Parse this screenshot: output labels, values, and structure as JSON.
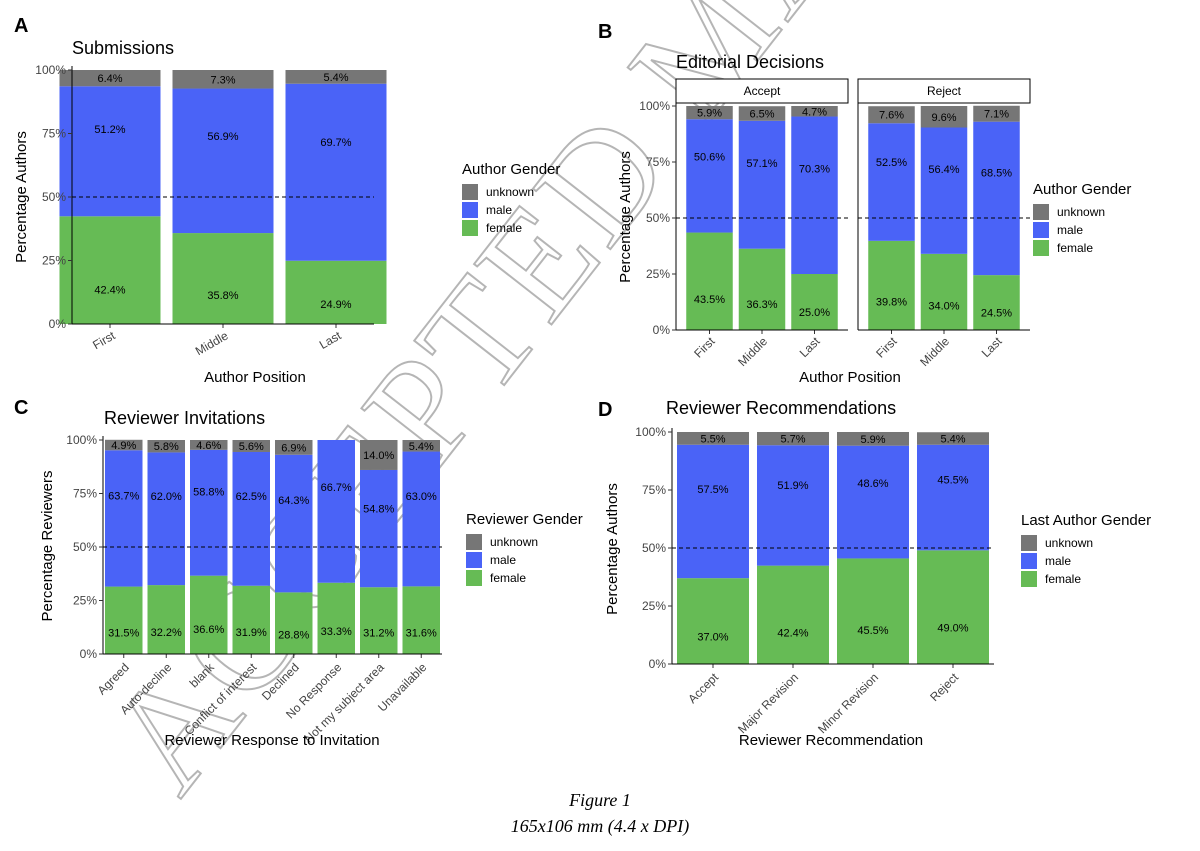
{
  "colors": {
    "unknown": "#767676",
    "male": "#4a63f7",
    "female": "#66bb55"
  },
  "caption": {
    "line1": "Figure 1",
    "line2": "165x106 mm (4.4 x  DPI)"
  },
  "watermark": "ACCEPTED MANUSCRIPT",
  "chart_data": [
    {
      "panel": "A",
      "type": "bar",
      "stacked": true,
      "title": "Submissions",
      "xlabel": "Author Position",
      "ylabel": "Percentage Authors",
      "yticks": [
        "0%",
        "25%",
        "50%",
        "75%",
        "100%"
      ],
      "ylim": [
        0,
        100
      ],
      "reference_line": 50,
      "legend_title": "Author Gender",
      "legend_items": [
        "unknown",
        "male",
        "female"
      ],
      "categories": [
        "First",
        "Middle",
        "Last"
      ],
      "series": [
        {
          "name": "female",
          "values": [
            42.4,
            35.8,
            24.9
          ],
          "labels": [
            "42.4%",
            "35.8%",
            "24.9%"
          ]
        },
        {
          "name": "male",
          "values": [
            51.2,
            56.9,
            69.7
          ],
          "labels": [
            "51.2%",
            "56.9%",
            "69.7%"
          ]
        },
        {
          "name": "unknown",
          "values": [
            6.4,
            7.3,
            5.4
          ],
          "labels": [
            "6.4%",
            "7.3%",
            "5.4%"
          ]
        }
      ]
    },
    {
      "panel": "B",
      "type": "bar",
      "stacked": true,
      "title": "Editorial Decisions",
      "xlabel": "Author Position",
      "ylabel": "Percentage Authors",
      "yticks": [
        "0%",
        "25%",
        "50%",
        "75%",
        "100%"
      ],
      "ylim": [
        0,
        100
      ],
      "reference_line": 50,
      "legend_title": "Author Gender",
      "legend_items": [
        "unknown",
        "male",
        "female"
      ],
      "facets": [
        {
          "label": "Accept",
          "categories": [
            "First",
            "Middle",
            "Last"
          ],
          "series": [
            {
              "name": "female",
              "values": [
                43.5,
                36.3,
                25.0
              ],
              "labels": [
                "43.5%",
                "36.3%",
                "25.0%"
              ]
            },
            {
              "name": "male",
              "values": [
                50.6,
                57.1,
                70.3
              ],
              "labels": [
                "50.6%",
                "57.1%",
                "70.3%"
              ]
            },
            {
              "name": "unknown",
              "values": [
                5.9,
                6.5,
                4.7
              ],
              "labels": [
                "5.9%",
                "6.5%",
                "4.7%"
              ]
            }
          ]
        },
        {
          "label": "Reject",
          "categories": [
            "First",
            "Middle",
            "Last"
          ],
          "series": [
            {
              "name": "female",
              "values": [
                39.8,
                34.0,
                24.5
              ],
              "labels": [
                "39.8%",
                "34.0%",
                "24.5%"
              ]
            },
            {
              "name": "male",
              "values": [
                52.5,
                56.4,
                68.5
              ],
              "labels": [
                "52.5%",
                "56.4%",
                "68.5%"
              ]
            },
            {
              "name": "unknown",
              "values": [
                7.6,
                9.6,
                7.1
              ],
              "labels": [
                "7.6%",
                "9.6%",
                "7.1%"
              ]
            }
          ]
        }
      ]
    },
    {
      "panel": "C",
      "type": "bar",
      "stacked": true,
      "title": "Reviewer Invitations",
      "xlabel": "Reviewer Response to Invitation",
      "ylabel": "Percentage Reviewers",
      "yticks": [
        "0%",
        "25%",
        "50%",
        "75%",
        "100%"
      ],
      "ylim": [
        0,
        100
      ],
      "reference_line": 50,
      "legend_title": "Reviewer Gender",
      "legend_items": [
        "unknown",
        "male",
        "female"
      ],
      "categories": [
        "Agreed",
        "Auto-decline",
        "blank",
        "Conflict of interest",
        "Declined",
        "No Response",
        "Not my subject area",
        "Unavailable"
      ],
      "series": [
        {
          "name": "female",
          "values": [
            31.5,
            32.2,
            36.6,
            31.9,
            28.8,
            33.3,
            31.2,
            31.6
          ],
          "labels": [
            "31.5%",
            "32.2%",
            "36.6%",
            "31.9%",
            "28.8%",
            "33.3%",
            "31.2%",
            "31.6%"
          ]
        },
        {
          "name": "male",
          "values": [
            63.7,
            62.0,
            58.8,
            62.5,
            64.3,
            66.7,
            54.8,
            63.0
          ],
          "labels": [
            "63.7%",
            "62.0%",
            "58.8%",
            "62.5%",
            "64.3%",
            "66.7%",
            "54.8%",
            "63.0%"
          ]
        },
        {
          "name": "unknown",
          "values": [
            4.9,
            5.8,
            4.6,
            5.6,
            6.9,
            0,
            14.0,
            5.4
          ],
          "labels": [
            "4.9%",
            "5.8%",
            "4.6%",
            "5.6%",
            "6.9%",
            "",
            "14.0%",
            "5.4%"
          ]
        }
      ]
    },
    {
      "panel": "D",
      "type": "bar",
      "stacked": true,
      "title": "Reviewer Recommendations",
      "xlabel": "Reviewer Recommendation",
      "ylabel": "Percentage Authors",
      "yticks": [
        "0%",
        "25%",
        "50%",
        "75%",
        "100%"
      ],
      "ylim": [
        0,
        100
      ],
      "reference_line": 50,
      "legend_title": "Last Author Gender",
      "legend_items": [
        "unknown",
        "male",
        "female"
      ],
      "categories": [
        "Accept",
        "Major Revision",
        "Minor Revision",
        "Reject"
      ],
      "series": [
        {
          "name": "female",
          "values": [
            37.0,
            42.4,
            45.5,
            49.0
          ],
          "labels": [
            "37.0%",
            "42.4%",
            "45.5%",
            "49.0%"
          ]
        },
        {
          "name": "male",
          "values": [
            57.5,
            51.9,
            48.6,
            45.5
          ],
          "labels": [
            "57.5%",
            "51.9%",
            "48.6%",
            "45.5%"
          ]
        },
        {
          "name": "unknown",
          "values": [
            5.5,
            5.7,
            5.9,
            5.4
          ],
          "labels": [
            "5.5%",
            "5.7%",
            "5.9%",
            "5.4%"
          ]
        }
      ]
    }
  ]
}
